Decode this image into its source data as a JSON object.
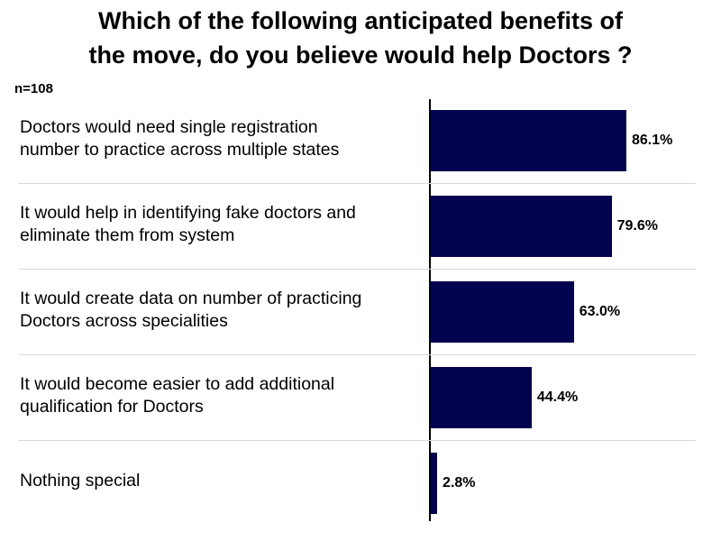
{
  "chart_data": {
    "type": "bar",
    "orientation": "horizontal",
    "title": "Which of the following anticipated benefits of\nthe move, do you believe would help Doctors ?",
    "subtitle": "n=108",
    "categories": [
      "Doctors would need single registration\nnumber to practice across multiple states",
      "It would help in identifying fake doctors and\neliminate them from system",
      "It would create data on number of practicing\nDoctors across specialities",
      "It would become easier to add additional\nqualification for Doctors",
      "Nothing special"
    ],
    "values": [
      86.1,
      79.6,
      63.0,
      44.4,
      2.8
    ],
    "value_labels": [
      "86.1%",
      "79.6%",
      "63.0%",
      "44.4%",
      "2.8%"
    ],
    "color": "#03034f"
  }
}
